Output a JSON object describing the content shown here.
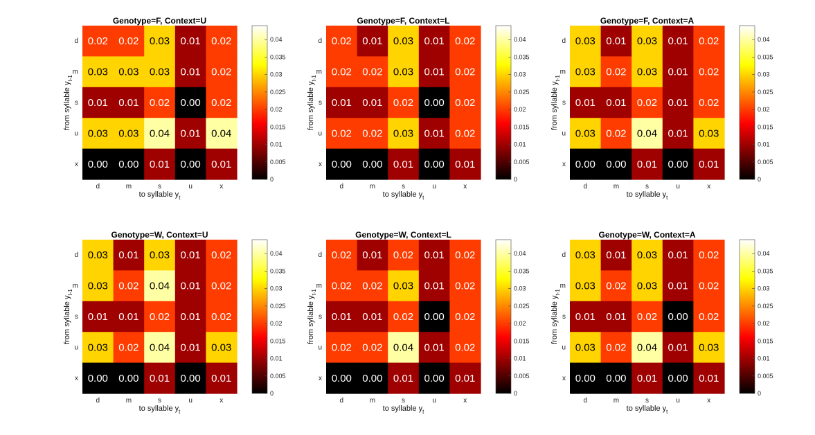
{
  "chart_data": [
    {
      "type": "heatmap",
      "title": "Genotype=F, Context=U",
      "xlabel": "to syllable y",
      "xlabel_sub": "t",
      "ylabel": "from syllable y",
      "ylabel_sub": "t-1",
      "x_categories": [
        "d",
        "m",
        "s",
        "u",
        "x"
      ],
      "y_categories": [
        "d",
        "m",
        "s",
        "u",
        "x"
      ],
      "values": [
        [
          0.02,
          0.02,
          0.03,
          0.01,
          0.02
        ],
        [
          0.03,
          0.03,
          0.03,
          0.01,
          0.02
        ],
        [
          0.01,
          0.01,
          0.02,
          0.0,
          0.02
        ],
        [
          0.03,
          0.03,
          0.04,
          0.01,
          0.04
        ],
        [
          0.0,
          0.0,
          0.01,
          0.0,
          0.01
        ]
      ],
      "labels": [
        [
          "0.02",
          "0.02",
          "0.03",
          "0.01",
          "0.02"
        ],
        [
          "0.03",
          "0.03",
          "0.03",
          "0.01",
          "0.02"
        ],
        [
          "0.01",
          "0.01",
          "0.02",
          "0.00",
          "0.02"
        ],
        [
          "0.03",
          "0.03",
          "0.04",
          "0.01",
          "0.04"
        ],
        [
          "0.00",
          "0.00",
          "0.01",
          "0.00",
          "0.01"
        ]
      ],
      "colorbar": {
        "range": [
          0,
          0.044
        ],
        "ticks": [
          "0",
          "0.005",
          "0.01",
          "0.015",
          "0.02",
          "0.025",
          "0.03",
          "0.035",
          "0.04"
        ]
      }
    },
    {
      "type": "heatmap",
      "title": "Genotype=F, Context=L",
      "xlabel": "to syllable y",
      "xlabel_sub": "t",
      "ylabel": "from syllable y",
      "ylabel_sub": "t-1",
      "x_categories": [
        "d",
        "m",
        "s",
        "u",
        "x"
      ],
      "y_categories": [
        "d",
        "m",
        "s",
        "u",
        "x"
      ],
      "values": [
        [
          0.02,
          0.01,
          0.03,
          0.01,
          0.02
        ],
        [
          0.02,
          0.02,
          0.03,
          0.01,
          0.02
        ],
        [
          0.01,
          0.01,
          0.02,
          0.0,
          0.02
        ],
        [
          0.02,
          0.02,
          0.03,
          0.01,
          0.02
        ],
        [
          0.0,
          0.0,
          0.01,
          0.0,
          0.01
        ]
      ],
      "labels": [
        [
          "0.02",
          "0.01",
          "0.03",
          "0.01",
          "0.02"
        ],
        [
          "0.02",
          "0.02",
          "0.03",
          "0.01",
          "0.02"
        ],
        [
          "0.01",
          "0.01",
          "0.02",
          "0.00",
          "0.02"
        ],
        [
          "0.02",
          "0.02",
          "0.03",
          "0.01",
          "0.02"
        ],
        [
          "0.00",
          "0.00",
          "0.01",
          "0.00",
          "0.01"
        ]
      ],
      "colorbar": {
        "range": [
          0,
          0.044
        ],
        "ticks": [
          "0",
          "0.005",
          "0.01",
          "0.015",
          "0.02",
          "0.025",
          "0.03",
          "0.035",
          "0.04"
        ]
      }
    },
    {
      "type": "heatmap",
      "title": "Genotype=F, Context=A",
      "xlabel": "to syllable y",
      "xlabel_sub": "t",
      "ylabel": "from syllable y",
      "ylabel_sub": "t-1",
      "x_categories": [
        "d",
        "m",
        "s",
        "u",
        "x"
      ],
      "y_categories": [
        "d",
        "m",
        "s",
        "u",
        "x"
      ],
      "values": [
        [
          0.03,
          0.01,
          0.03,
          0.01,
          0.02
        ],
        [
          0.03,
          0.02,
          0.03,
          0.01,
          0.02
        ],
        [
          0.01,
          0.01,
          0.02,
          0.01,
          0.02
        ],
        [
          0.03,
          0.02,
          0.04,
          0.01,
          0.03
        ],
        [
          0.0,
          0.0,
          0.01,
          0.0,
          0.01
        ]
      ],
      "labels": [
        [
          "0.03",
          "0.01",
          "0.03",
          "0.01",
          "0.02"
        ],
        [
          "0.03",
          "0.02",
          "0.03",
          "0.01",
          "0.02"
        ],
        [
          "0.01",
          "0.01",
          "0.02",
          "0.01",
          "0.02"
        ],
        [
          "0.03",
          "0.02",
          "0.04",
          "0.01",
          "0.03"
        ],
        [
          "0.00",
          "0.00",
          "0.01",
          "0.00",
          "0.01"
        ]
      ],
      "colorbar": {
        "range": [
          0,
          0.044
        ],
        "ticks": [
          "0",
          "0.005",
          "0.01",
          "0.015",
          "0.02",
          "0.025",
          "0.03",
          "0.035",
          "0.04"
        ]
      }
    },
    {
      "type": "heatmap",
      "title": "Genotype=W, Context=U",
      "xlabel": "to syllable y",
      "xlabel_sub": "t",
      "ylabel": "from syllable y",
      "ylabel_sub": "t-1",
      "x_categories": [
        "d",
        "m",
        "s",
        "u",
        "x"
      ],
      "y_categories": [
        "d",
        "m",
        "s",
        "u",
        "x"
      ],
      "values": [
        [
          0.03,
          0.01,
          0.03,
          0.01,
          0.02
        ],
        [
          0.03,
          0.02,
          0.04,
          0.01,
          0.02
        ],
        [
          0.01,
          0.01,
          0.02,
          0.01,
          0.02
        ],
        [
          0.03,
          0.02,
          0.04,
          0.01,
          0.03
        ],
        [
          0.0,
          0.0,
          0.01,
          0.0,
          0.01
        ]
      ],
      "labels": [
        [
          "0.03",
          "0.01",
          "0.03",
          "0.01",
          "0.02"
        ],
        [
          "0.03",
          "0.02",
          "0.04",
          "0.01",
          "0.02"
        ],
        [
          "0.01",
          "0.01",
          "0.02",
          "0.01",
          "0.02"
        ],
        [
          "0.03",
          "0.02",
          "0.04",
          "0.01",
          "0.03"
        ],
        [
          "0.00",
          "0.00",
          "0.01",
          "0.00",
          "0.01"
        ]
      ],
      "colorbar": {
        "range": [
          0,
          0.044
        ],
        "ticks": [
          "0",
          "0.005",
          "0.01",
          "0.015",
          "0.02",
          "0.025",
          "0.03",
          "0.035",
          "0.04"
        ]
      }
    },
    {
      "type": "heatmap",
      "title": "Genotype=W, Context=L",
      "xlabel": "to syllable y",
      "xlabel_sub": "t",
      "ylabel": "from syllable y",
      "ylabel_sub": "t-1",
      "x_categories": [
        "d",
        "m",
        "s",
        "u",
        "x"
      ],
      "y_categories": [
        "d",
        "m",
        "s",
        "u",
        "x"
      ],
      "values": [
        [
          0.02,
          0.01,
          0.02,
          0.01,
          0.02
        ],
        [
          0.02,
          0.02,
          0.03,
          0.01,
          0.02
        ],
        [
          0.01,
          0.01,
          0.02,
          0.0,
          0.02
        ],
        [
          0.02,
          0.02,
          0.04,
          0.01,
          0.02
        ],
        [
          0.0,
          0.0,
          0.01,
          0.0,
          0.01
        ]
      ],
      "labels": [
        [
          "0.02",
          "0.01",
          "0.02",
          "0.01",
          "0.02"
        ],
        [
          "0.02",
          "0.02",
          "0.03",
          "0.01",
          "0.02"
        ],
        [
          "0.01",
          "0.01",
          "0.02",
          "0.00",
          "0.02"
        ],
        [
          "0.02",
          "0.02",
          "0.04",
          "0.01",
          "0.02"
        ],
        [
          "0.00",
          "0.00",
          "0.01",
          "0.00",
          "0.01"
        ]
      ],
      "colorbar": {
        "range": [
          0,
          0.044
        ],
        "ticks": [
          "0",
          "0.005",
          "0.01",
          "0.015",
          "0.02",
          "0.025",
          "0.03",
          "0.035",
          "0.04"
        ]
      }
    },
    {
      "type": "heatmap",
      "title": "Genotype=W, Context=A",
      "xlabel": "to syllable y",
      "xlabel_sub": "t",
      "ylabel": "from syllable y",
      "ylabel_sub": "t-1",
      "x_categories": [
        "d",
        "m",
        "s",
        "u",
        "x"
      ],
      "y_categories": [
        "d",
        "m",
        "s",
        "u",
        "x"
      ],
      "values": [
        [
          0.03,
          0.01,
          0.03,
          0.01,
          0.02
        ],
        [
          0.03,
          0.02,
          0.03,
          0.01,
          0.02
        ],
        [
          0.01,
          0.01,
          0.02,
          0.0,
          0.02
        ],
        [
          0.03,
          0.02,
          0.04,
          0.01,
          0.03
        ],
        [
          0.0,
          0.0,
          0.01,
          0.0,
          0.01
        ]
      ],
      "labels": [
        [
          "0.03",
          "0.01",
          "0.03",
          "0.01",
          "0.02"
        ],
        [
          "0.03",
          "0.02",
          "0.03",
          "0.01",
          "0.02"
        ],
        [
          "0.01",
          "0.01",
          "0.02",
          "0.00",
          "0.02"
        ],
        [
          "0.03",
          "0.02",
          "0.04",
          "0.01",
          "0.03"
        ],
        [
          "0.00",
          "0.00",
          "0.01",
          "0.00",
          "0.01"
        ]
      ],
      "colorbar": {
        "range": [
          0,
          0.044
        ],
        "ticks": [
          "0",
          "0.005",
          "0.01",
          "0.015",
          "0.02",
          "0.025",
          "0.03",
          "0.035",
          "0.04"
        ]
      }
    }
  ]
}
